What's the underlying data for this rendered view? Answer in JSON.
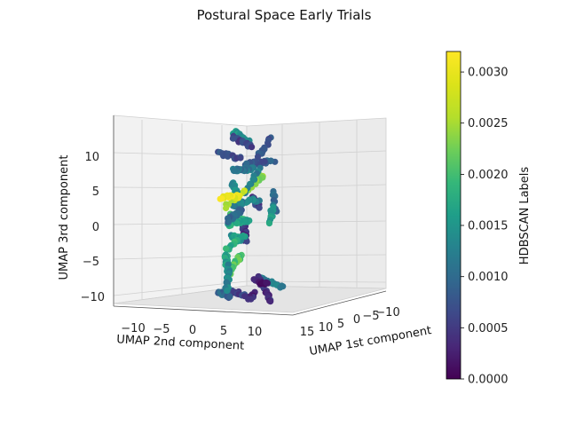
{
  "chart_data": {
    "type": "scatter",
    "projection": "3d",
    "title": "Postural Space Early Trials",
    "xlabel": "UMAP 1st component",
    "ylabel": "UMAP 2nd component",
    "zlabel": "UMAP 3rd component",
    "colorbar_label": "HDBSCAN Labels",
    "colormap": "viridis",
    "clim": [
      0.0,
      0.0032
    ],
    "colorbar_ticks": [
      "0.0000",
      "0.0005",
      "0.0010",
      "0.0015",
      "0.0020",
      "0.0025",
      "0.0030"
    ],
    "x_ticks": [
      "15",
      "10",
      "5",
      "0",
      "−5",
      "−10"
    ],
    "y_ticks": [
      "−10",
      "−5",
      "0",
      "5",
      "10"
    ],
    "z_ticks": [
      "10",
      "5",
      "0",
      "−5",
      "−10"
    ],
    "xlim": [
      -12,
      18
    ],
    "ylim": [
      -13,
      14
    ],
    "zlim": [
      -12,
      15
    ],
    "grid": true,
    "clusters": [
      {
        "x": 2,
        "y": -11,
        "z": 3,
        "color": 0.001
      },
      {
        "x": 1,
        "y": -9,
        "z": 1,
        "color": 0.0016
      },
      {
        "x": 3,
        "y": -7,
        "z": 9,
        "color": 0.0008
      },
      {
        "x": -1,
        "y": -5,
        "z": 11,
        "color": 0.0007
      },
      {
        "x": 4,
        "y": -6,
        "z": 6,
        "color": 0.0024
      },
      {
        "x": 2,
        "y": -10,
        "z": -9,
        "color": 0.0012
      },
      {
        "x": 0,
        "y": -6,
        "z": -10,
        "color": 0.0004
      },
      {
        "x": -2,
        "y": -3,
        "z": -9,
        "color": 0.0002
      },
      {
        "x": 1,
        "y": -2,
        "z": -11,
        "color": 0.0003
      },
      {
        "x": 3,
        "y": 1,
        "z": -10,
        "color": 0.0006
      },
      {
        "x": 5,
        "y": 3,
        "z": -10,
        "color": 0.0009
      },
      {
        "x": 0,
        "y": -3,
        "z": 3,
        "color": 0.0005
      },
      {
        "x": 2,
        "y": -1,
        "z": -1,
        "color": 0.0004
      },
      {
        "x": -3,
        "y": 1,
        "z": 6,
        "color": 0.0012
      },
      {
        "x": 1,
        "y": 1,
        "z": 13,
        "color": 0.0015
      },
      {
        "x": -2,
        "y": 3,
        "z": 8,
        "color": 0.0011
      },
      {
        "x": -4,
        "y": 4,
        "z": 3,
        "color": 0.0013
      },
      {
        "x": -5,
        "y": 6,
        "z": 12,
        "color": 0.0006
      },
      {
        "x": 2,
        "y": 2,
        "z": 4,
        "color": 0.0026
      },
      {
        "x": -1,
        "y": 4,
        "z": -2,
        "color": 0.0015
      },
      {
        "x": -3,
        "y": 6,
        "z": 1,
        "color": 0.0019
      },
      {
        "x": -6,
        "y": 8,
        "z": 0,
        "color": 0.0017
      },
      {
        "x": -7,
        "y": 10,
        "z": -3,
        "color": 0.0018
      },
      {
        "x": -6,
        "y": 9,
        "z": -6,
        "color": 0.0021
      },
      {
        "x": -8,
        "y": 11,
        "z": 5,
        "color": 0.0014
      },
      {
        "x": -5,
        "y": 10,
        "z": 10,
        "color": 0.0007
      },
      {
        "x": 3,
        "y": 4,
        "z": -5,
        "color": 0.0016
      },
      {
        "x": -2,
        "y": 8,
        "z": -8,
        "color": 0.0013
      },
      {
        "x": -9,
        "y": 12,
        "z": 1,
        "color": 0.0009
      },
      {
        "x": -4,
        "y": 9,
        "z": 4,
        "color": 0.003
      }
    ]
  }
}
